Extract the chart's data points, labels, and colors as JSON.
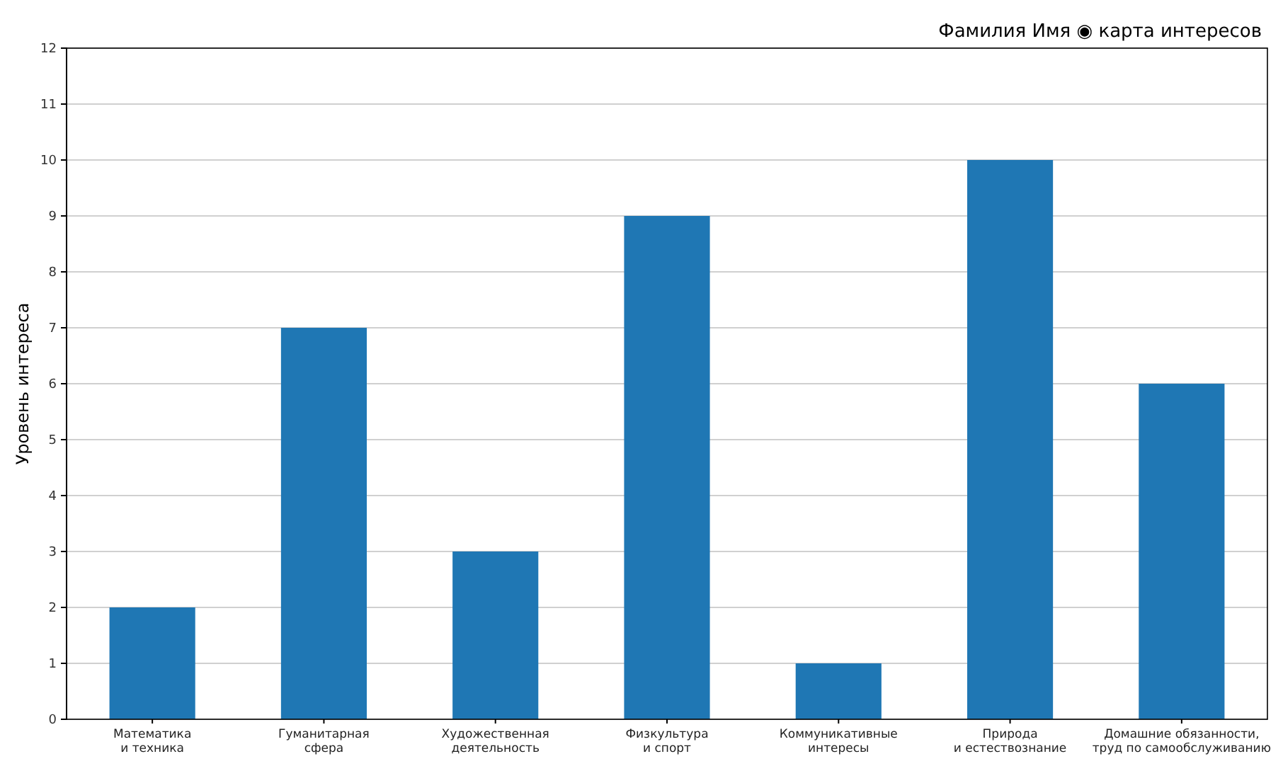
{
  "chart_data": {
    "type": "bar",
    "title": "Фамилия Имя ◉ карта интересов",
    "ylabel": "Уровень интереса",
    "categories": [
      "Математика\nи техника",
      "Гуманитарная\nсфера",
      "Художественная\nдеятельность",
      "Физкультура\nи спорт",
      "Коммуникативные\nинтересы",
      "Природа\nи естествознание",
      "Домашние обязанности,\nтруд по самообслуживанию"
    ],
    "values": [
      2,
      7,
      3,
      9,
      1,
      10,
      6
    ],
    "color": "#1f77b4",
    "ylim": [
      0,
      12
    ],
    "yticks": [
      0,
      1,
      2,
      3,
      4,
      5,
      6,
      7,
      8,
      9,
      10,
      11,
      12
    ],
    "grid": "y"
  }
}
